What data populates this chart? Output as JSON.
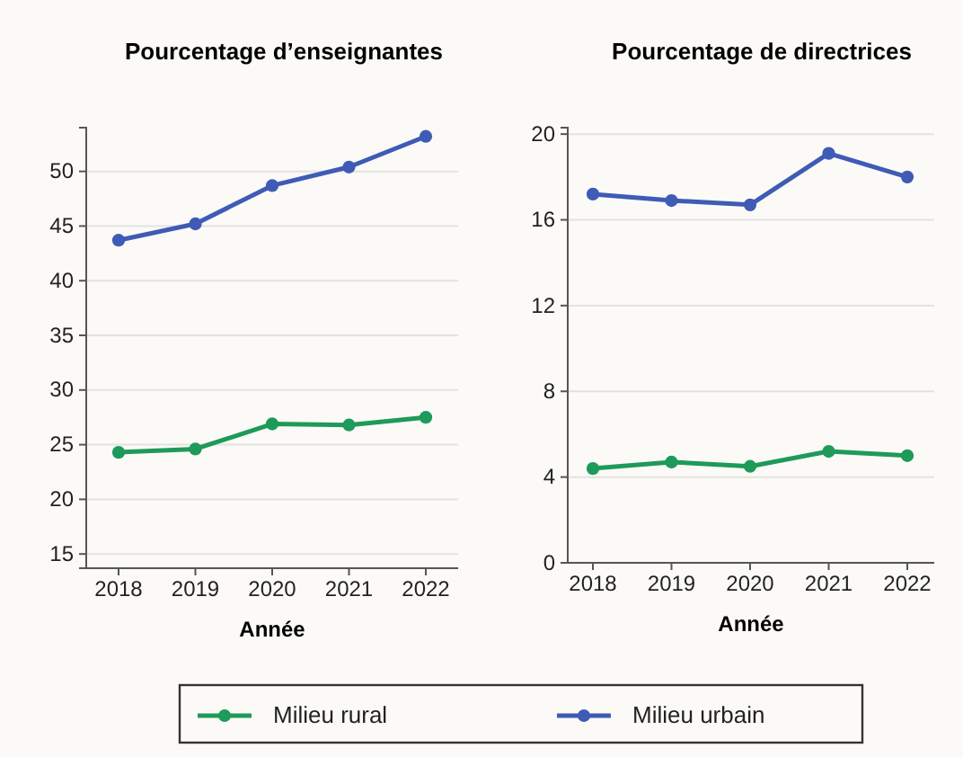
{
  "chart_data": [
    {
      "type": "line",
      "title": "Pourcentage d’enseignantes",
      "xlabel": "Année",
      "categories": [
        "2018",
        "2019",
        "2020",
        "2021",
        "2022"
      ],
      "series": [
        {
          "name": "Milieu rural",
          "color": "#1e9a5a",
          "values": [
            24.3,
            24.6,
            26.9,
            26.8,
            27.5
          ]
        },
        {
          "name": "Milieu urbain",
          "color": "#3f5bb5",
          "values": [
            43.7,
            45.2,
            48.7,
            50.4,
            53.2
          ]
        }
      ],
      "ylim": [
        13.7,
        54
      ],
      "yticks": [
        15,
        20,
        25,
        30,
        35,
        40,
        45,
        50
      ],
      "grid": "y",
      "legend": "bottom",
      "marker": "circle",
      "line_style": "solid"
    },
    {
      "type": "line",
      "title": "Pourcentage de directrices",
      "xlabel": "Année",
      "categories": [
        "2018",
        "2019",
        "2020",
        "2021",
        "2022"
      ],
      "series": [
        {
          "color": "#1e9a5a",
          "values": [
            4.4,
            4.7,
            4.5,
            5.2,
            5.0
          ]
        },
        {
          "color": "#3f5bb5",
          "values": [
            17.2,
            16.9,
            16.7,
            19.1,
            18.0
          ]
        }
      ],
      "ylim": [
        0,
        20.3
      ],
      "yticks": [
        0,
        4,
        8,
        12,
        16,
        20
      ],
      "grid": "y",
      "marker": "circle",
      "line_style": "solid"
    }
  ]
}
